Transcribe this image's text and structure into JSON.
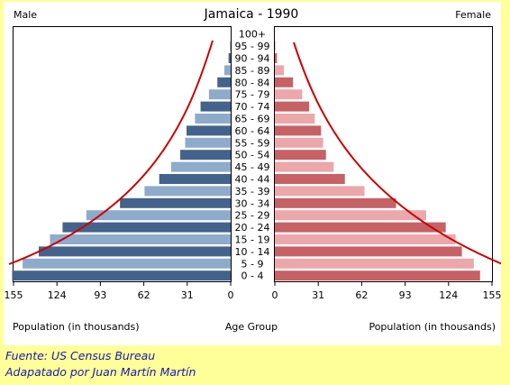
{
  "chart_data": {
    "type": "bar",
    "title": "Jamaica - 1990",
    "left_label": "Male",
    "right_label": "Female",
    "xlabel_left": "Population (in thousands)",
    "xlabel_center": "Age Group",
    "xlabel_right": "Population (in thousands)",
    "xlim": [
      0,
      155
    ],
    "ticks_left": [
      "155",
      "124",
      "93",
      "62",
      "31",
      "0"
    ],
    "ticks_right": [
      "0",
      "31",
      "62",
      "93",
      "124",
      "155"
    ],
    "tick_values": [
      155,
      124,
      93,
      62,
      31,
      0
    ],
    "tick_values_right": [
      0,
      31,
      62,
      93,
      124,
      155
    ],
    "categories": [
      "100+",
      "95 - 99",
      "90 - 94",
      "85 - 89",
      "80 - 84",
      "75 - 79",
      "70 - 74",
      "65 - 69",
      "60 - 64",
      "55 - 59",
      "50 - 54",
      "45 - 49",
      "40 - 44",
      "35 - 39",
      "30 - 34",
      "25 - 29",
      "20 - 24",
      "15 - 19",
      "10 - 14",
      "5 - 9",
      "0 - 4"
    ],
    "series": [
      {
        "name": "Male",
        "values": [
          0,
          0.5,
          1.5,
          4.5,
          9.5,
          15.5,
          21.5,
          25.5,
          31.5,
          32.5,
          36,
          42.5,
          51,
          61.5,
          79,
          103,
          120,
          129,
          137,
          148.5,
          156
        ]
      },
      {
        "name": "Female",
        "values": [
          0,
          0.5,
          1.5,
          6.5,
          13,
          19.5,
          24.5,
          28.5,
          33,
          34.5,
          36.5,
          42,
          50,
          64,
          86.5,
          108,
          122,
          129,
          133.5,
          142,
          146.5
        ]
      }
    ],
    "colors": {
      "male_dark": "#43638c",
      "male_light": "#8fabcb",
      "female_dark": "#c66166",
      "female_light": "#eba7aa",
      "curve": "#cc0000",
      "credit": "#1a1aaa"
    }
  },
  "credits": {
    "source": "Fuente: US Census Bureau",
    "adapted": "Adapatado por Juan Martín Martín"
  }
}
